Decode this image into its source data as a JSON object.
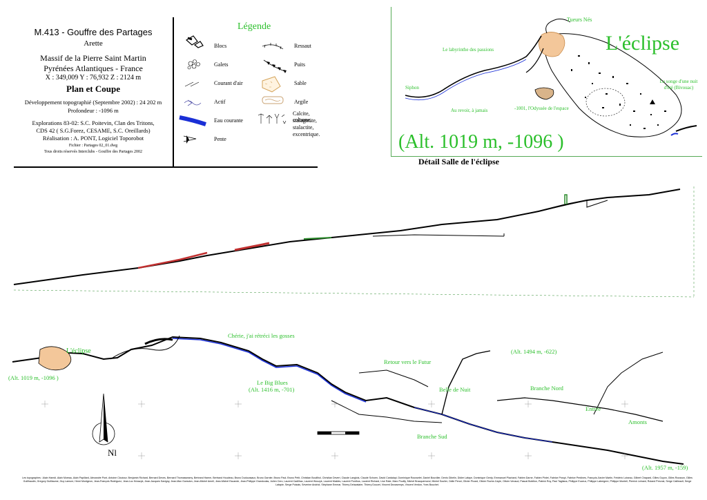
{
  "title_block": {
    "code_name": "M.413 - Gouffre des Partages",
    "commune": "Arette",
    "massif": "Massif de la Pierre Saint Martin",
    "region": "Pyrénées Atlantiques - France",
    "coords": "X : 349,009 Y : 76,932 Z : 2124 m",
    "plan_title": "Plan et Coupe",
    "development": "Développement topographié (Septembre 2002) : 24 202 m",
    "depth": "Profondeur : -1096 m",
    "explorations": "Explorations 83-02: S.C. Poitevin, Clan des Tritons,",
    "explorations2": "CDS 42 ( S.G.Forez, CESAME, S.C. Oreillards)",
    "realisation": "Réalisation : A. PONT, Logiciel Toporobot",
    "file": "Fichier : Partages 02_01.dwg",
    "rights": "Tous droits réservés Interclubs - Gouffre des Partages 2002"
  },
  "legend": {
    "title": "Légende",
    "items": [
      {
        "label": "Blocs",
        "icon": "blocks-icon"
      },
      {
        "label": "Galets",
        "icon": "pebbles-icon"
      },
      {
        "label": "Courant d'air",
        "icon": "air-current-icon"
      },
      {
        "label": "Actif",
        "icon": "active-stream-icon"
      },
      {
        "label": "Eau courante",
        "icon": "running-water-icon",
        "color": "#1a2fd6"
      },
      {
        "label": "Pente",
        "icon": "slope-icon"
      },
      {
        "label": "Ressaut",
        "icon": "step-icon"
      },
      {
        "label": "Puits",
        "icon": "pit-icon"
      },
      {
        "label": "Sable",
        "icon": "sand-icon",
        "color": "#d4a35a"
      },
      {
        "label": "Argile",
        "icon": "clay-icon",
        "color": "#c8a070"
      },
      {
        "label": "Calcite, colonne,",
        "icon": "calcite-icon"
      },
      {
        "label": "stalagmite,",
        "icon": ""
      },
      {
        "label": "stalactite,",
        "icon": ""
      },
      {
        "label": "excentrique.",
        "icon": ""
      }
    ]
  },
  "detail": {
    "name": "L'éclipse",
    "altitude": "(Alt. 1019 m, -1096 )",
    "caption": "Détail Salle de l'éclipse",
    "labels": {
      "tueurs": "Tueurs Nés",
      "labyrinthe": "Le labyrinthe des passions",
      "siphon": "Siphon",
      "revoir": "Au revoir, à jamais",
      "odyssee": "-1001, l'Odyssée de l'espace",
      "songe": "Le songe d'une nuit d'été (Bivouac)"
    }
  },
  "plan": {
    "eclipse": "L'éclipse",
    "eclipse_alt": "(Alt. 1019 m, -1096 )",
    "cherie": "Chérie, j'ai rétréci les gosses",
    "big_blues": "Le Big Blues",
    "big_blues_alt": "(Alt. 1416 m, -701)",
    "retour": "Retour vers le Futur",
    "alt_1494": "(Alt. 1494 m, -622)",
    "belle_nuit": "Belle de Nuit",
    "branche_nord": "Branche Nord",
    "entree": "Entrée",
    "amonts": "Amonts",
    "branche_sud": "Branche Sud",
    "alt_1957": "(Alt. 1957 m, -159)",
    "north": "Nl"
  },
  "colors": {
    "label_green": "#2bbf2b",
    "water_blue": "#1a2fd6",
    "sand_orange": "#e0a050"
  },
  "credits": "Les topographes : Alain Hamdi, Alain Moreau, Alain Papillard, Alexandre Pont, Antoine Cloutour, Benjamin Richard, Bernard Deves, Bernard Thomasseamy, Bertrand Hamm, Bertrand Houdeau, Bruno Duducasaux, Bruno Garnier, Bruno Paol, Bruno Petit, Christian Bouillhol, Christian Devert, Claude Langlois, Claude Schoen, David Cardalapi, Dominique Rousselet, Daniel Bouvilier, Denis Gibelin, Didier Lafaye, Dominique Genty, Emmanuel Plachard, Fabien Darne, Fabien Pinlet, Fabrice Prospi, Fabrice Perdines, François-Xavier Martin, Frédéric Loiseau, Gilbert Chapard, Gilles Guyon, Gilles Rousson, Gilles Guillhaudin, Gregory Guilliaume, Guy Lamure, Henri Montgeon, Jean-François Rodriguez, Jean-Luc Krizazyk, Jean-Jacques Savigny, Jean-Max Guesdon, Jean-Michel Amell, Jean-Michel Escande, Jean-Philippe Grandcolas, Julien Cero, Laurent Cadilhac, Laurent Woozyk, Laurent Maldes, Laurent Ponthus, Laurent Richard, Lise Rate, Marc Pouilly, Michel Bracquemond, Michel Soulier, Odile Penot, Olivier Picard, Olivier Roche-Cayle, Olivier Venaud, Pascal Bobillon, Patrick Roy, Paul Tagliana, Philippe Euceux, Philippe Labregere, Philippe Monteil, Pierrick Leinard, Roland Prevost, Serge Cailleault, Serge Latapie, Serge Puisais, Séverine Andriot, Stéphane Emmar, Thierry Delavalaire, Thierry Doucet, Vincent Dezasemps, Vincent Verdon, Yves Bouchet."
}
